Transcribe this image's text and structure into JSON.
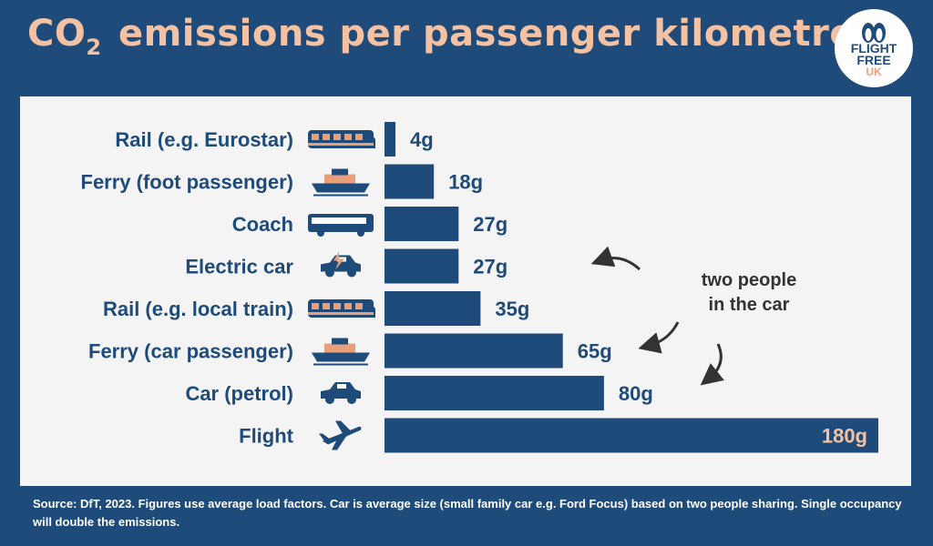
{
  "header": {
    "title_prefix": "CO",
    "title_sub": "2",
    "title_rest": " emissions per passenger kilometre"
  },
  "logo": {
    "line1": "FLIGHT",
    "line2": "FREE",
    "line3": "UK",
    "icon": "penguins-icon"
  },
  "annotation": {
    "line1": "two people",
    "line2": "in the car"
  },
  "footer": {
    "text": "Source: DfT, 2023. Figures use average load factors. Car is average size (small family car e.g. Ford Focus) based on two people sharing. Single occupancy will double the emissions."
  },
  "colors": {
    "background": "#1f4b7a",
    "panel": "#f4f4f4",
    "bar": "#1f4b7a",
    "title": "#f4c2a3",
    "accent": "#e8a07a"
  },
  "chart_data": {
    "type": "bar",
    "orientation": "horizontal",
    "title": "CO2 emissions per passenger kilometre",
    "unit": "g",
    "categories": [
      "Rail (e.g. Eurostar)",
      "Ferry (foot passenger)",
      "Coach",
      "Electric car",
      "Rail (e.g. local train)",
      "Ferry (car passenger)",
      "Car (petrol)",
      "Flight"
    ],
    "values": [
      4,
      18,
      27,
      27,
      35,
      65,
      80,
      180
    ],
    "labels": [
      "4g",
      "18g",
      "27g",
      "27g",
      "35g",
      "65g",
      "80g",
      "180g"
    ],
    "icons": [
      "train-icon",
      "ferry-icon",
      "coach-icon",
      "electric-car-icon",
      "train-icon",
      "ferry-icon",
      "car-icon",
      "plane-icon"
    ],
    "xlim": [
      0,
      180
    ],
    "grid": false,
    "legend": "none"
  }
}
